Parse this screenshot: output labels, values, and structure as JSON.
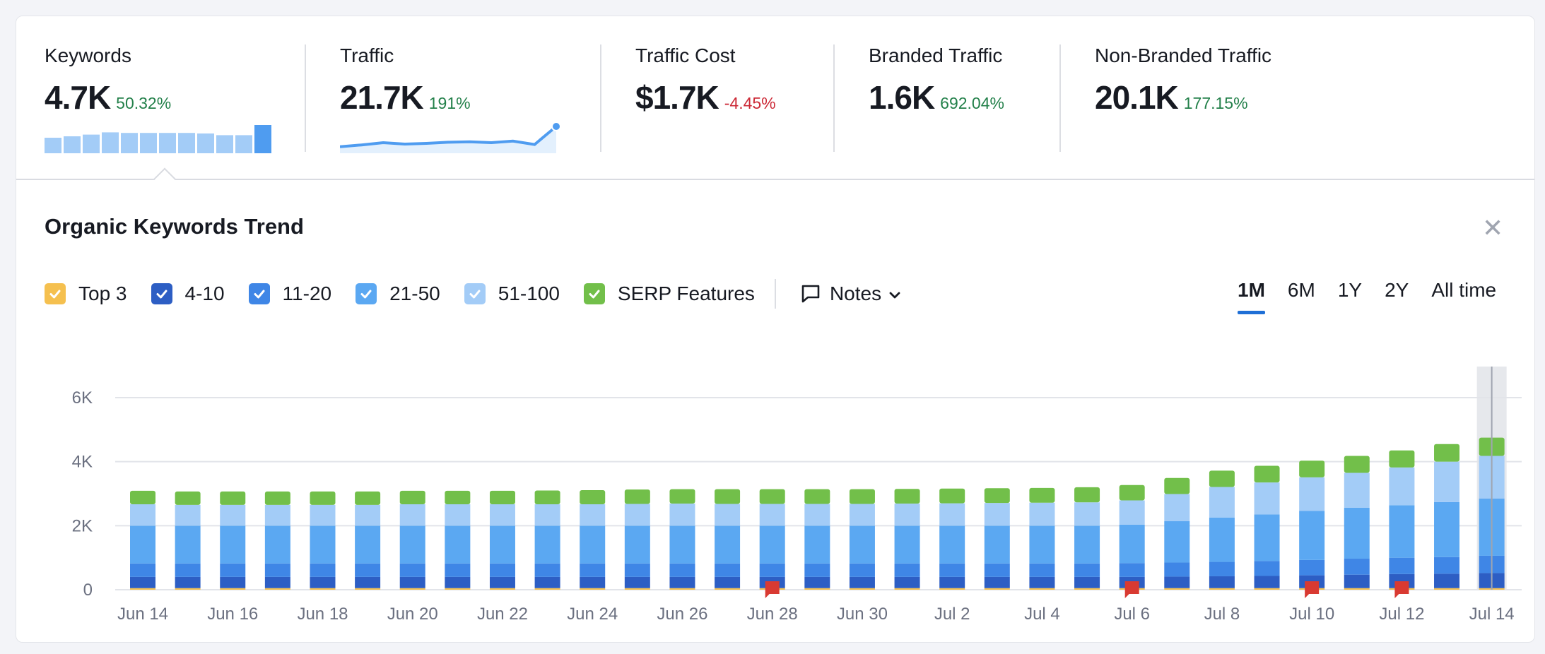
{
  "metrics": [
    {
      "label": "Keywords",
      "value": "4.7K",
      "change": "50.32%",
      "trend": "up",
      "spark": "bars",
      "spark_values": [
        0.55,
        0.6,
        0.66,
        0.74,
        0.72,
        0.72,
        0.72,
        0.72,
        0.7,
        0.64,
        0.64,
        1.0
      ]
    },
    {
      "label": "Traffic",
      "value": "21.7K",
      "change": "191%",
      "trend": "up",
      "spark": "line",
      "spark_values": [
        0.1,
        0.18,
        0.28,
        0.22,
        0.25,
        0.3,
        0.32,
        0.28,
        0.35,
        0.2,
        1.0
      ]
    },
    {
      "label": "Traffic Cost",
      "value": "$1.7K",
      "change": "-4.45%",
      "trend": "down"
    },
    {
      "label": "Branded Traffic",
      "value": "1.6K",
      "change": "692.04%",
      "trend": "up"
    },
    {
      "label": "Non-Branded Traffic",
      "value": "20.1K",
      "change": "177.15%",
      "trend": "up"
    }
  ],
  "panel": {
    "title": "Organic Keywords Trend",
    "close_label": "✕"
  },
  "legend": [
    {
      "label": "Top 3",
      "color": "#f5c04f"
    },
    {
      "label": "4-10",
      "color": "#2d5ec4"
    },
    {
      "label": "11-20",
      "color": "#3f86e6"
    },
    {
      "label": "21-50",
      "color": "#5ba8f2"
    },
    {
      "label": "51-100",
      "color": "#a3ccf7"
    },
    {
      "label": "SERP Features",
      "color": "#72bf4a"
    }
  ],
  "notes": {
    "label": "Notes"
  },
  "periods": [
    {
      "label": "1M",
      "active": true
    },
    {
      "label": "6M",
      "active": false
    },
    {
      "label": "1Y",
      "active": false
    },
    {
      "label": "2Y",
      "active": false
    },
    {
      "label": "All time",
      "active": false
    }
  ],
  "chart_data": {
    "type": "bar",
    "stacked": true,
    "categories": [
      "Jun 14",
      "Jun 15",
      "Jun 16",
      "Jun 17",
      "Jun 18",
      "Jun 19",
      "Jun 20",
      "Jun 21",
      "Jun 22",
      "Jun 23",
      "Jun 24",
      "Jun 25",
      "Jun 26",
      "Jun 27",
      "Jun 28",
      "Jun 29",
      "Jun 30",
      "Jul 1",
      "Jul 2",
      "Jul 3",
      "Jul 4",
      "Jul 5",
      "Jul 6",
      "Jul 7",
      "Jul 8",
      "Jul 9",
      "Jul 10",
      "Jul 11",
      "Jul 12",
      "Jul 13",
      "Jul 14"
    ],
    "x_tick_labels": [
      "Jun 14",
      "Jun 16",
      "Jun 18",
      "Jun 20",
      "Jun 22",
      "Jun 24",
      "Jun 26",
      "Jun 28",
      "Jun 30",
      "Jul 2",
      "Jul 4",
      "Jul 6",
      "Jul 8",
      "Jul 10",
      "Jul 12",
      "Jul 14"
    ],
    "y_ticks": [
      0,
      2000,
      4000,
      6000
    ],
    "y_tick_labels": [
      "0",
      "2K",
      "4K",
      "6K"
    ],
    "ylim": [
      0,
      6000
    ],
    "grid": true,
    "highlight_category": "Jul 14",
    "note_flags": [
      "Jun 28",
      "Jul 6",
      "Jul 10",
      "Jul 12"
    ],
    "series": [
      {
        "name": "Top 3",
        "color": "#f5c04f",
        "values": [
          50,
          50,
          50,
          50,
          50,
          50,
          50,
          50,
          50,
          50,
          50,
          50,
          50,
          50,
          50,
          50,
          50,
          50,
          50,
          50,
          50,
          50,
          50,
          50,
          50,
          50,
          50,
          50,
          50,
          50,
          50
        ]
      },
      {
        "name": "4-10",
        "color": "#2d5ec4",
        "values": [
          350,
          350,
          350,
          350,
          350,
          350,
          350,
          350,
          350,
          350,
          350,
          350,
          350,
          350,
          350,
          350,
          350,
          350,
          350,
          350,
          350,
          350,
          350,
          360,
          370,
          380,
          400,
          420,
          440,
          450,
          470
        ]
      },
      {
        "name": "11-20",
        "color": "#3f86e6",
        "values": [
          420,
          420,
          420,
          420,
          420,
          420,
          420,
          420,
          420,
          420,
          420,
          420,
          420,
          420,
          420,
          420,
          420,
          420,
          420,
          420,
          420,
          420,
          430,
          440,
          450,
          470,
          480,
          500,
          510,
          520,
          540
        ]
      },
      {
        "name": "21-50",
        "color": "#5ba8f2",
        "values": [
          1180,
          1180,
          1180,
          1180,
          1180,
          1180,
          1180,
          1180,
          1180,
          1180,
          1180,
          1180,
          1180,
          1180,
          1180,
          1180,
          1180,
          1180,
          1180,
          1180,
          1180,
          1180,
          1200,
          1290,
          1380,
          1450,
          1530,
          1590,
          1640,
          1720,
          1790
        ]
      },
      {
        "name": "51-100",
        "color": "#a3ccf7",
        "values": [
          670,
          650,
          650,
          650,
          650,
          650,
          670,
          670,
          670,
          670,
          670,
          680,
          690,
          680,
          680,
          680,
          680,
          690,
          700,
          710,
          720,
          730,
          760,
          850,
          960,
          1000,
          1050,
          1090,
          1180,
          1260,
          1330
        ]
      },
      {
        "name": "SERP Features",
        "color": "#72bf4a",
        "values": [
          420,
          420,
          420,
          420,
          420,
          420,
          420,
          420,
          420,
          430,
          440,
          450,
          450,
          460,
          460,
          460,
          460,
          460,
          460,
          460,
          460,
          470,
          480,
          500,
          510,
          520,
          520,
          530,
          530,
          550,
          570
        ]
      }
    ]
  }
}
